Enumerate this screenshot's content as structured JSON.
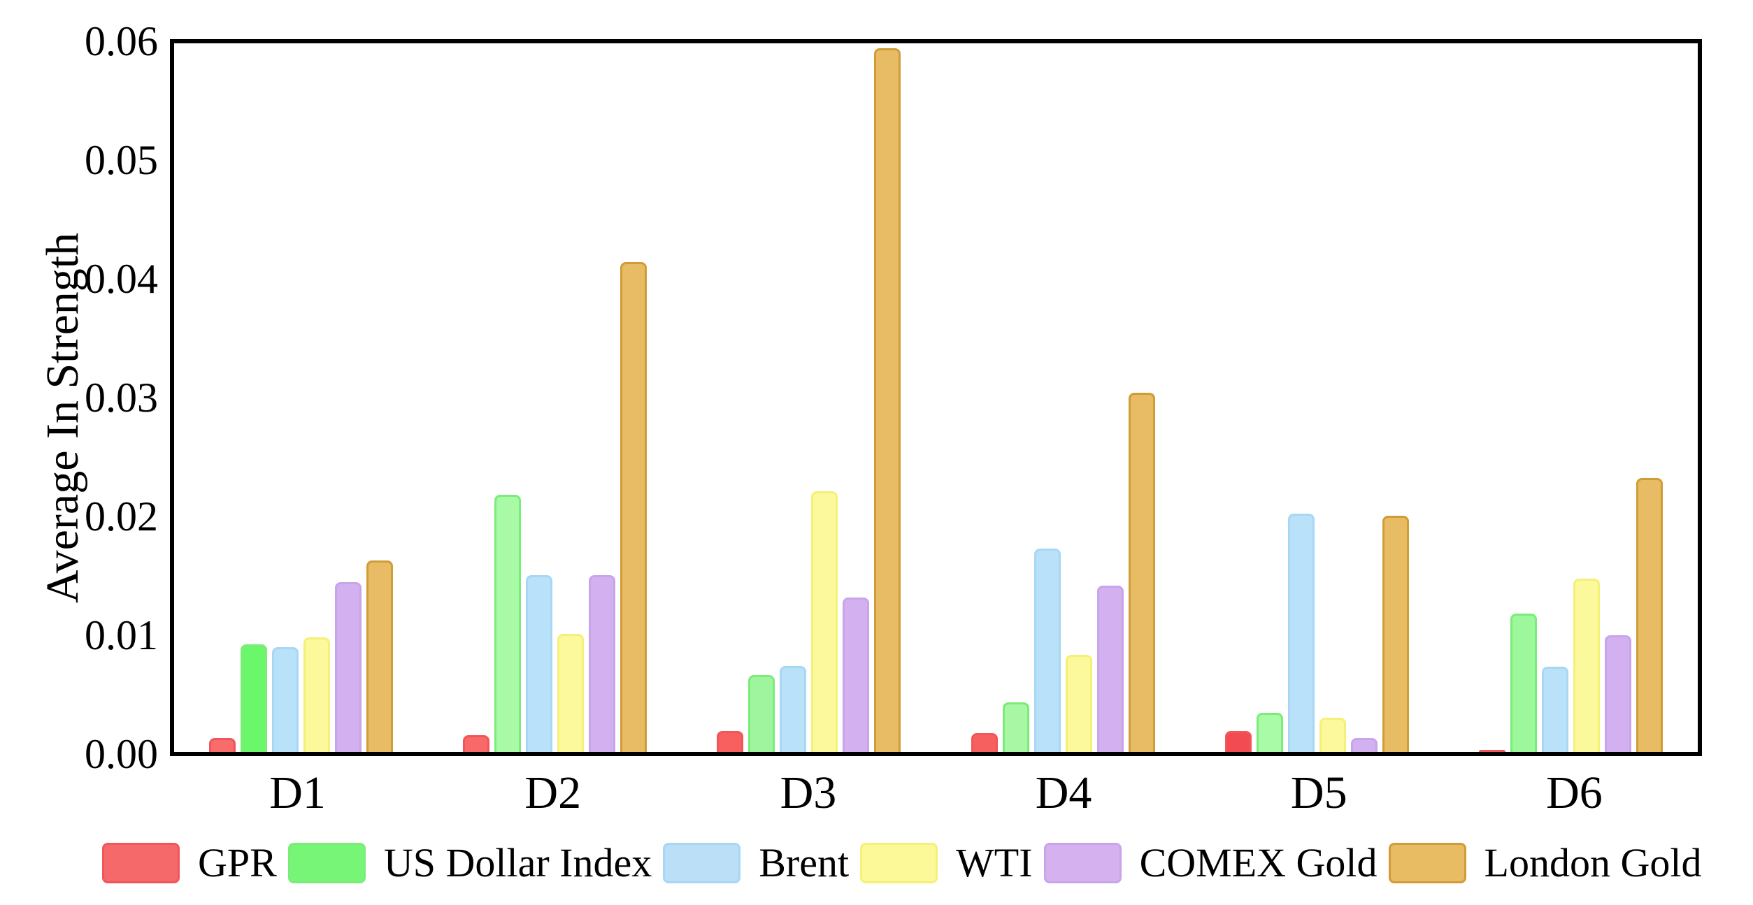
{
  "figure": {
    "background": "#ffffff",
    "frame_color": "#000000"
  },
  "chart_data": {
    "type": "bar",
    "title": "",
    "xlabel": "",
    "ylabel": "Average In Strength",
    "categories": [
      "D1",
      "D2",
      "D3",
      "D4",
      "D5",
      "D6"
    ],
    "series": [
      {
        "name": "GPR",
        "fill": "#F7696A",
        "edge": "#F0565A",
        "legend_fill": "#F5696B",
        "fills": [
          "#F96C6C",
          "#F9696A",
          "#F7605F",
          "#F6615F",
          "#F34B52",
          "#F3484F"
        ],
        "values": [
          0.0012,
          0.0014,
          0.0018,
          0.0016,
          0.0018,
          0.0002
        ]
      },
      {
        "name": "US Dollar Index",
        "fill": "#A7F8A5",
        "edge": "#7BEC7A",
        "legend_fill": "#77F576",
        "fills": [
          "#6BF76A",
          "#A9FAA7",
          "#9EF59D",
          "#A7F7A5",
          "#A9FBA8",
          "#9CF89B"
        ],
        "values": [
          0.0091,
          0.0218,
          0.0065,
          0.0042,
          0.0033,
          0.0117
        ]
      },
      {
        "name": "Brent",
        "fill": "#B9E1F9",
        "edge": "#A8D7F3",
        "legend_fill": "#BBDFF7",
        "fills": null,
        "values": [
          0.0089,
          0.015,
          0.0073,
          0.0172,
          0.0202,
          0.0072
        ]
      },
      {
        "name": "WTI",
        "fill": "#FBF99B",
        "edge": "#F5F078",
        "legend_fill": "#FCF998",
        "fills": null,
        "values": [
          0.0097,
          0.01,
          0.0221,
          0.0082,
          0.0029,
          0.0147
        ]
      },
      {
        "name": "COMEX Gold",
        "fill": "#D3B1F1",
        "edge": "#C8A4EA",
        "legend_fill": "#D5B2EF",
        "fills": null,
        "values": [
          0.0144,
          0.015,
          0.0131,
          0.0141,
          0.0012,
          0.0099
        ]
      },
      {
        "name": "London Gold",
        "fill": "#E7BC64",
        "edge": "#D09C38",
        "legend_fill": "#E7BC63",
        "fills": null,
        "values": [
          0.0162,
          0.0415,
          0.0596,
          0.0304,
          0.02,
          0.0232
        ]
      }
    ],
    "ylim": [
      0,
      0.06
    ],
    "yticks": [
      "0.00",
      "0.01",
      "0.02",
      "0.03",
      "0.04",
      "0.05",
      "0.06"
    ],
    "grid": false,
    "legend_position": "bottom"
  }
}
